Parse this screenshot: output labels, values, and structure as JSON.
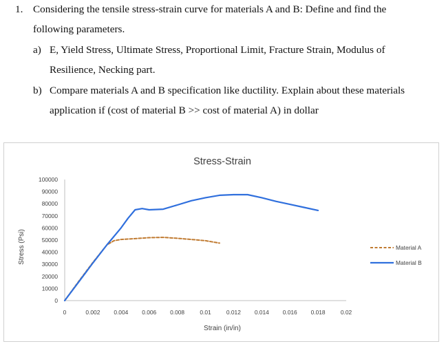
{
  "question": {
    "number": "1.",
    "line1": "Considering the tensile stress-strain curve for materials A and B: Define and find the",
    "line2": "following parameters.",
    "a_label": "a)",
    "a_line1": "E, Yield Stress, Ultimate Stress, Proportional Limit, Fracture Strain, Modulus of",
    "a_line2": "Resilience, Necking part.",
    "b_label": "b)",
    "b_line1": "Compare materials A and B specification like ductility. Explain about these materials",
    "b_line2": "application if (cost of material B >> cost of material A) in dollar"
  },
  "chart_data": {
    "type": "line",
    "title": "Stress-Strain",
    "xlabel": "Strain (in/in)",
    "ylabel": "Stress (Psi)",
    "xlim": [
      0,
      0.02
    ],
    "ylim": [
      0,
      100000
    ],
    "x_ticks": [
      "0",
      "0.002",
      "0.004",
      "0.006",
      "0.008",
      "0.01",
      "0.012",
      "0.014",
      "0.016",
      "0.018",
      "0.02"
    ],
    "y_ticks": [
      "0",
      "10000",
      "20000",
      "30000",
      "40000",
      "50000",
      "60000",
      "70000",
      "80000",
      "90000",
      "100000"
    ],
    "grid": false,
    "legend_position": "right",
    "series": [
      {
        "name": "Material A",
        "color": "#c07a30",
        "style": "dashed",
        "points": [
          [
            0,
            0
          ],
          [
            0.001,
            16000
          ],
          [
            0.002,
            31500
          ],
          [
            0.003,
            46000
          ],
          [
            0.0035,
            49500
          ],
          [
            0.004,
            50500
          ],
          [
            0.005,
            51200
          ],
          [
            0.006,
            52000
          ],
          [
            0.007,
            52200
          ],
          [
            0.008,
            51500
          ],
          [
            0.009,
            50500
          ],
          [
            0.01,
            49500
          ],
          [
            0.011,
            47500
          ]
        ]
      },
      {
        "name": "Material B",
        "color": "#2f6fdd",
        "style": "solid",
        "points": [
          [
            0,
            0
          ],
          [
            0.001,
            15500
          ],
          [
            0.002,
            31000
          ],
          [
            0.003,
            46000
          ],
          [
            0.004,
            60000
          ],
          [
            0.0045,
            68000
          ],
          [
            0.005,
            75000
          ],
          [
            0.0055,
            76000
          ],
          [
            0.006,
            75000
          ],
          [
            0.007,
            75500
          ],
          [
            0.008,
            79000
          ],
          [
            0.009,
            82500
          ],
          [
            0.01,
            85000
          ],
          [
            0.011,
            87000
          ],
          [
            0.012,
            87500
          ],
          [
            0.013,
            87500
          ],
          [
            0.014,
            85000
          ],
          [
            0.015,
            82000
          ],
          [
            0.016,
            79500
          ],
          [
            0.017,
            77000
          ],
          [
            0.018,
            74500
          ]
        ]
      }
    ]
  }
}
